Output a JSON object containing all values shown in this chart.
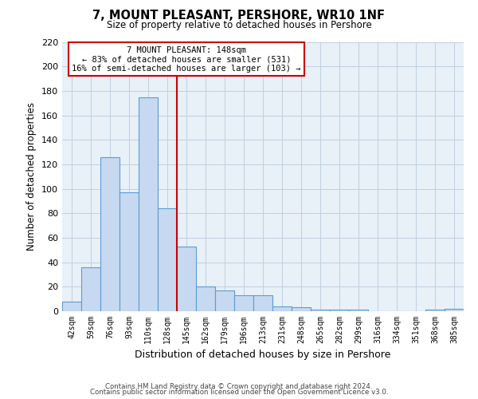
{
  "title": "7, MOUNT PLEASANT, PERSHORE, WR10 1NF",
  "subtitle": "Size of property relative to detached houses in Pershore",
  "xlabel": "Distribution of detached houses by size in Pershore",
  "ylabel": "Number of detached properties",
  "bar_labels": [
    "42sqm",
    "59sqm",
    "76sqm",
    "93sqm",
    "110sqm",
    "128sqm",
    "145sqm",
    "162sqm",
    "179sqm",
    "196sqm",
    "213sqm",
    "231sqm",
    "248sqm",
    "265sqm",
    "282sqm",
    "299sqm",
    "316sqm",
    "334sqm",
    "351sqm",
    "368sqm",
    "385sqm"
  ],
  "bar_heights": [
    8,
    36,
    126,
    97,
    175,
    84,
    53,
    20,
    17,
    13,
    13,
    4,
    3,
    1,
    1,
    1,
    0,
    0,
    0,
    1,
    2
  ],
  "bar_color": "#c6d9f0",
  "bar_edge_color": "#5b9bd5",
  "highlight_line_color": "#cc0000",
  "ylim": [
    0,
    220
  ],
  "yticks": [
    0,
    20,
    40,
    60,
    80,
    100,
    120,
    140,
    160,
    180,
    200,
    220
  ],
  "annotation_title": "7 MOUNT PLEASANT: 148sqm",
  "annotation_line1": "← 83% of detached houses are smaller (531)",
  "annotation_line2": "16% of semi-detached houses are larger (103) →",
  "annotation_box_color": "#ffffff",
  "annotation_box_edge": "#cc0000",
  "footer_line1": "Contains HM Land Registry data © Crown copyright and database right 2024.",
  "footer_line2": "Contains public sector information licensed under the Open Government Licence v3.0.",
  "background_color": "#ffffff",
  "plot_bg_color": "#e8f0f8",
  "grid_color": "#c0cfe0"
}
